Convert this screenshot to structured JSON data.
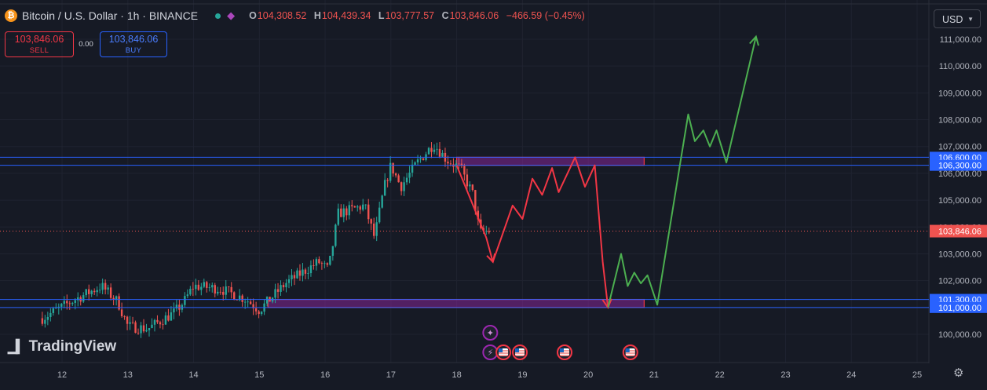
{
  "header": {
    "symbol": "Bitcoin / U.S. Dollar · 1h · BINANCE",
    "logo_glyph": "₿",
    "ohlc": [
      {
        "k": "O",
        "v": "104,308.52"
      },
      {
        "k": "H",
        "v": "104,439.34"
      },
      {
        "k": "L",
        "v": "103,777.57"
      },
      {
        "k": "C",
        "v": "103,846.06"
      }
    ],
    "change": "−466.59 (−0.45%)"
  },
  "trade": {
    "sell_price": "103,846.06",
    "sell_label": "SELL",
    "spread": "0.00",
    "buy_price": "103,846.06",
    "buy_label": "BUY"
  },
  "currency": "USD",
  "brand": "TradingView",
  "colors": {
    "background": "#161a25",
    "up": "#26a69a",
    "down": "#ef5350",
    "level_line": "#2962ff",
    "zone_fill": "#9c27b0",
    "zone_border": "#f23645",
    "proj_down": "#f23645",
    "proj_up": "#4caf50"
  },
  "chart_data": {
    "type": "candlestick",
    "symbol": "BTCUSD",
    "interval": "1h",
    "ylim": [
      99400,
      111600
    ],
    "x_ticks": [
      "12",
      "13",
      "14",
      "15",
      "16",
      "17",
      "18",
      "19",
      "20",
      "21",
      "22",
      "23",
      "24",
      "25"
    ],
    "y_ticks": [
      100000,
      101000,
      102000,
      103000,
      104000,
      105000,
      106000,
      107000,
      108000,
      109000,
      110000,
      111000
    ],
    "current_price": 103846.06,
    "current_price_label": "103,846.06",
    "levels": [
      {
        "value": 106600,
        "label": "106,600.00"
      },
      {
        "value": 106300,
        "label": "106,300.00"
      },
      {
        "value": 101300,
        "label": "101,300.00"
      },
      {
        "value": 101000,
        "label": "101,000.00"
      }
    ],
    "zones": [
      {
        "from_day": 18.0,
        "to_day": 20.85,
        "low": 106300,
        "high": 106600
      },
      {
        "from_day": 15.13,
        "to_day": 20.85,
        "low": 101000,
        "high": 101300
      }
    ],
    "anchors": [
      {
        "day": 11.7,
        "price": 100600
      },
      {
        "day": 12.2,
        "price": 101300
      },
      {
        "day": 12.6,
        "price": 101800
      },
      {
        "day": 12.85,
        "price": 101200
      },
      {
        "day": 13.0,
        "price": 100300
      },
      {
        "day": 13.3,
        "price": 100200
      },
      {
        "day": 13.7,
        "price": 100800
      },
      {
        "day": 13.85,
        "price": 101200
      },
      {
        "day": 14.0,
        "price": 101800
      },
      {
        "day": 14.4,
        "price": 101700
      },
      {
        "day": 14.8,
        "price": 101300
      },
      {
        "day": 15.0,
        "price": 100900
      },
      {
        "day": 15.4,
        "price": 101900
      },
      {
        "day": 15.9,
        "price": 102700
      },
      {
        "day": 16.05,
        "price": 102400
      },
      {
        "day": 16.2,
        "price": 104500
      },
      {
        "day": 16.6,
        "price": 104800
      },
      {
        "day": 16.75,
        "price": 103600
      },
      {
        "day": 16.9,
        "price": 105500
      },
      {
        "day": 17.0,
        "price": 106300
      },
      {
        "day": 17.15,
        "price": 105500
      },
      {
        "day": 17.4,
        "price": 106400
      },
      {
        "day": 17.65,
        "price": 107100
      },
      {
        "day": 17.85,
        "price": 106500
      },
      {
        "day": 18.05,
        "price": 106200
      },
      {
        "day": 18.25,
        "price": 105200
      },
      {
        "day": 18.35,
        "price": 103800
      },
      {
        "day": 18.5,
        "price": 103850
      }
    ],
    "projections": [
      {
        "color": "down",
        "points": [
          [
            18.0,
            106300
          ],
          [
            18.45,
            103600
          ],
          [
            18.55,
            102700
          ],
          [
            18.85,
            104800
          ],
          [
            19.0,
            104300
          ],
          [
            19.15,
            105800
          ],
          [
            19.3,
            105200
          ],
          [
            19.45,
            106200
          ],
          [
            19.55,
            105300
          ],
          [
            19.8,
            106600
          ],
          [
            19.95,
            105500
          ],
          [
            20.1,
            106300
          ],
          [
            20.22,
            102700
          ],
          [
            20.3,
            101000
          ]
        ]
      },
      {
        "color": "up",
        "points": [
          [
            20.3,
            101000
          ],
          [
            20.5,
            103000
          ],
          [
            20.6,
            101800
          ],
          [
            20.7,
            102300
          ],
          [
            20.8,
            101900
          ],
          [
            20.9,
            102200
          ],
          [
            21.05,
            101100
          ],
          [
            21.4,
            106400
          ],
          [
            21.52,
            108200
          ],
          [
            21.62,
            107200
          ],
          [
            21.75,
            107600
          ],
          [
            21.85,
            107000
          ],
          [
            21.95,
            107600
          ],
          [
            22.1,
            106400
          ],
          [
            22.55,
            111100
          ]
        ]
      }
    ],
    "events": [
      {
        "day": 18.51,
        "kind": "star"
      },
      {
        "day": 18.51,
        "kind": "flash"
      },
      {
        "day": 18.71,
        "kind": "flag"
      },
      {
        "day": 18.96,
        "kind": "flag"
      },
      {
        "day": 19.64,
        "kind": "flag"
      },
      {
        "day": 20.64,
        "kind": "flag"
      }
    ]
  }
}
